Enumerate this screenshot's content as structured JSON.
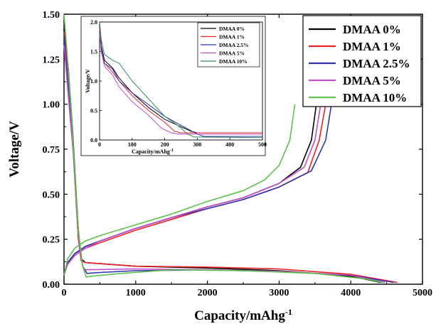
{
  "chart_data": [
    {
      "type": "line",
      "title": "",
      "xlabel": "Capacity/mAhg",
      "xlabel_sup": "-1",
      "ylabel": "Voltage/V",
      "xlim": [
        0,
        5000
      ],
      "ylim": [
        0,
        1.5
      ],
      "x_ticks": [
        "0",
        "1000",
        "2000",
        "3000",
        "4000",
        "5000"
      ],
      "y_ticks": [
        "0.00",
        "0.25",
        "0.50",
        "0.75",
        "1.00",
        "1.25",
        "1.50"
      ],
      "legend_position": "top-right",
      "grid": false,
      "series": [
        {
          "name": "DMAA 0%",
          "color": "#000000",
          "discharge": [
            [
              0,
              1.42
            ],
            [
              60,
              1.2
            ],
            [
              120,
              0.85
            ],
            [
              170,
              0.5
            ],
            [
              200,
              0.3
            ],
            [
              240,
              0.14
            ],
            [
              300,
              0.12
            ],
            [
              1000,
              0.1
            ],
            [
              2000,
              0.09
            ],
            [
              3000,
              0.075
            ],
            [
              4000,
              0.045
            ],
            [
              4420,
              0.01
            ]
          ],
          "charge": [
            [
              0,
              0.05
            ],
            [
              50,
              0.12
            ],
            [
              150,
              0.17
            ],
            [
              300,
              0.21
            ],
            [
              500,
              0.24
            ],
            [
              1000,
              0.31
            ],
            [
              1500,
              0.37
            ],
            [
              2000,
              0.43
            ],
            [
              2500,
              0.48
            ],
            [
              3000,
              0.56
            ],
            [
              3300,
              0.65
            ],
            [
              3450,
              0.8
            ],
            [
              3520,
              1.0
            ]
          ]
        },
        {
          "name": "DMAA 1%",
          "color": "#e8232a",
          "discharge": [
            [
              0,
              1.4
            ],
            [
              60,
              1.15
            ],
            [
              120,
              0.8
            ],
            [
              170,
              0.45
            ],
            [
              200,
              0.25
            ],
            [
              240,
              0.13
            ],
            [
              300,
              0.12
            ],
            [
              1000,
              0.1
            ],
            [
              2000,
              0.095
            ],
            [
              3000,
              0.085
            ],
            [
              4000,
              0.055
            ],
            [
              4650,
              0.01
            ]
          ],
          "charge": [
            [
              0,
              0.05
            ],
            [
              50,
              0.11
            ],
            [
              150,
              0.16
            ],
            [
              300,
              0.2
            ],
            [
              500,
              0.23
            ],
            [
              1000,
              0.3
            ],
            [
              1500,
              0.36
            ],
            [
              2000,
              0.42
            ],
            [
              2500,
              0.47
            ],
            [
              3000,
              0.54
            ],
            [
              3400,
              0.62
            ],
            [
              3560,
              0.8
            ],
            [
              3650,
              1.0
            ]
          ]
        },
        {
          "name": "DMAA 2.5%",
          "color": "#3333b0",
          "discharge": [
            [
              0,
              1.38
            ],
            [
              60,
              1.1
            ],
            [
              130,
              0.75
            ],
            [
              180,
              0.4
            ],
            [
              220,
              0.2
            ],
            [
              260,
              0.1
            ],
            [
              320,
              0.06
            ],
            [
              500,
              0.065
            ],
            [
              1000,
              0.075
            ],
            [
              2000,
              0.08
            ],
            [
              3000,
              0.07
            ],
            [
              4000,
              0.05
            ],
            [
              4600,
              0.01
            ]
          ],
          "charge": [
            [
              0,
              0.05
            ],
            [
              50,
              0.12
            ],
            [
              150,
              0.17
            ],
            [
              300,
              0.21
            ],
            [
              500,
              0.24
            ],
            [
              1000,
              0.31
            ],
            [
              1500,
              0.37
            ],
            [
              2000,
              0.42
            ],
            [
              2500,
              0.47
            ],
            [
              3000,
              0.54
            ],
            [
              3450,
              0.63
            ],
            [
              3650,
              0.8
            ],
            [
              3730,
              1.0
            ]
          ]
        },
        {
          "name": "DMAA 5%",
          "color": "#c34fc6",
          "discharge": [
            [
              0,
              1.33
            ],
            [
              60,
              1.05
            ],
            [
              130,
              0.72
            ],
            [
              180,
              0.4
            ],
            [
              220,
              0.2
            ],
            [
              260,
              0.1
            ],
            [
              300,
              0.08
            ],
            [
              1000,
              0.085
            ],
            [
              2000,
              0.08
            ],
            [
              3000,
              0.072
            ],
            [
              4000,
              0.05
            ],
            [
              4480,
              0.01
            ]
          ],
          "charge": [
            [
              0,
              0.05
            ],
            [
              50,
              0.11
            ],
            [
              150,
              0.16
            ],
            [
              300,
              0.2
            ],
            [
              500,
              0.24
            ],
            [
              1000,
              0.31
            ],
            [
              1500,
              0.37
            ],
            [
              2000,
              0.43
            ],
            [
              2500,
              0.48
            ],
            [
              3000,
              0.56
            ],
            [
              3350,
              0.65
            ],
            [
              3500,
              0.8
            ],
            [
              3580,
              1.0
            ]
          ]
        },
        {
          "name": "DMAA 10%",
          "color": "#5dc24a",
          "discharge": [
            [
              0,
              1.5
            ],
            [
              50,
              1.25
            ],
            [
              110,
              0.9
            ],
            [
              160,
              0.55
            ],
            [
              200,
              0.3
            ],
            [
              260,
              0.1
            ],
            [
              310,
              0.04
            ],
            [
              400,
              0.045
            ],
            [
              800,
              0.06
            ],
            [
              1500,
              0.08
            ],
            [
              2500,
              0.075
            ],
            [
              3500,
              0.06
            ],
            [
              4200,
              0.03
            ],
            [
              4450,
              0.01
            ]
          ],
          "charge": [
            [
              0,
              0.05
            ],
            [
              50,
              0.14
            ],
            [
              150,
              0.2
            ],
            [
              300,
              0.24
            ],
            [
              500,
              0.27
            ],
            [
              1000,
              0.33
            ],
            [
              1500,
              0.39
            ],
            [
              2000,
              0.46
            ],
            [
              2500,
              0.52
            ],
            [
              2800,
              0.58
            ],
            [
              3000,
              0.66
            ],
            [
              3150,
              0.8
            ],
            [
              3220,
              1.0
            ]
          ]
        }
      ]
    },
    {
      "type": "line",
      "title": "",
      "xlabel": "Capacity/mAhg",
      "xlabel_sup": "-1",
      "ylabel": "Voltage/V",
      "xlim": [
        0,
        500
      ],
      "ylim": [
        0,
        2.0
      ],
      "x_ticks": [
        "0",
        "100",
        "200",
        "300",
        "400",
        "500"
      ],
      "y_ticks": [
        "0.0",
        "0.5",
        "1.0",
        "1.5",
        "2.0"
      ],
      "legend_position": "top-right",
      "grid": false,
      "series": [
        {
          "name": "DMAA 0%",
          "color": "#000000",
          "points": [
            [
              0,
              2.0
            ],
            [
              5,
              1.6
            ],
            [
              15,
              1.35
            ],
            [
              40,
              1.22
            ],
            [
              60,
              1.05
            ],
            [
              100,
              0.8
            ],
            [
              150,
              0.55
            ],
            [
              200,
              0.35
            ],
            [
              240,
              0.25
            ],
            [
              280,
              0.15
            ],
            [
              300,
              0.12
            ],
            [
              500,
              0.12
            ]
          ]
        },
        {
          "name": "DMAA 1%",
          "color": "#e8232a",
          "points": [
            [
              0,
              1.9
            ],
            [
              5,
              1.5
            ],
            [
              15,
              1.3
            ],
            [
              40,
              1.15
            ],
            [
              60,
              1.0
            ],
            [
              100,
              0.75
            ],
            [
              150,
              0.5
            ],
            [
              200,
              0.3
            ],
            [
              230,
              0.15
            ],
            [
              250,
              0.12
            ],
            [
              500,
              0.12
            ]
          ]
        },
        {
          "name": "DMAA 2.5%",
          "color": "#3333b0",
          "points": [
            [
              0,
              1.85
            ],
            [
              5,
              1.55
            ],
            [
              15,
              1.3
            ],
            [
              40,
              1.2
            ],
            [
              60,
              1.0
            ],
            [
              100,
              0.8
            ],
            [
              150,
              0.6
            ],
            [
              200,
              0.4
            ],
            [
              250,
              0.25
            ],
            [
              300,
              0.1
            ],
            [
              320,
              0.06
            ],
            [
              500,
              0.06
            ]
          ]
        },
        {
          "name": "DMAA 5%",
          "color": "#c34fc6",
          "points": [
            [
              0,
              1.8
            ],
            [
              5,
              1.5
            ],
            [
              15,
              1.25
            ],
            [
              40,
              1.1
            ],
            [
              60,
              0.9
            ],
            [
              100,
              0.65
            ],
            [
              150,
              0.42
            ],
            [
              190,
              0.2
            ],
            [
              220,
              0.12
            ],
            [
              240,
              0.1
            ],
            [
              500,
              0.1
            ]
          ]
        },
        {
          "name": "DMAA 10%",
          "color": "#2e8b57",
          "points": [
            [
              0,
              2.0
            ],
            [
              5,
              1.7
            ],
            [
              15,
              1.45
            ],
            [
              40,
              1.35
            ],
            [
              60,
              1.3
            ],
            [
              100,
              1.0
            ],
            [
              150,
              0.7
            ],
            [
              200,
              0.4
            ],
            [
              240,
              0.25
            ],
            [
              270,
              0.1
            ],
            [
              290,
              0.05
            ],
            [
              500,
              0.04
            ]
          ]
        }
      ]
    }
  ]
}
